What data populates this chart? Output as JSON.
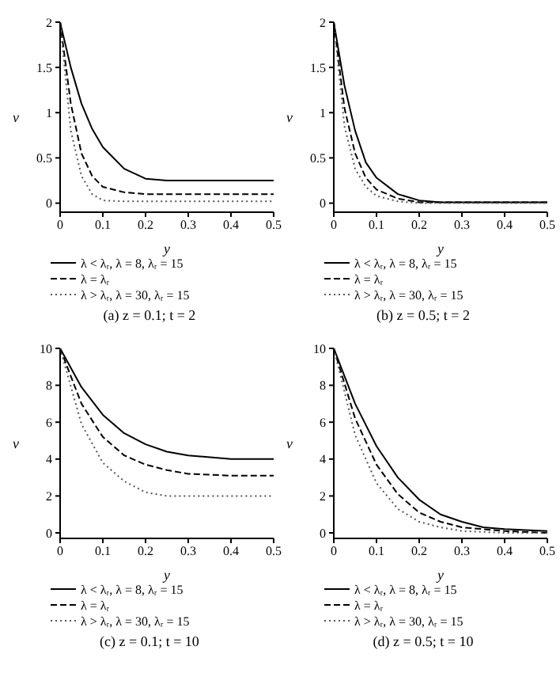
{
  "chart_data": [
    {
      "type": "line",
      "title": "(a) z = 0.1; t = 2",
      "xlabel": "y",
      "ylabel": "v",
      "xlim": [
        0,
        0.5
      ],
      "xticks": [
        0,
        0.1,
        0.2,
        0.3,
        0.4,
        0.5
      ],
      "ylim": [
        -0.1,
        2
      ],
      "yticks": [
        0,
        0.5,
        1,
        1.5,
        2
      ],
      "grid": false,
      "legend": "bottom",
      "marker": "none",
      "series": [
        {
          "name": "λ < λᵣ, λ = 8, λᵣ = 15",
          "color": "#000000",
          "line_style": "solid",
          "x": [
            0,
            0.025,
            0.05,
            0.075,
            0.1,
            0.15,
            0.2,
            0.25,
            0.3,
            0.4,
            0.5
          ],
          "values": [
            2,
            1.5,
            1.1,
            0.82,
            0.62,
            0.38,
            0.27,
            0.25,
            0.25,
            0.25,
            0.25
          ]
        },
        {
          "name": "λ = λᵣ",
          "color": "#000000",
          "line_style": "dashed",
          "x": [
            0,
            0.025,
            0.05,
            0.075,
            0.1,
            0.15,
            0.2,
            0.3,
            0.4,
            0.5
          ],
          "values": [
            2,
            1.1,
            0.55,
            0.3,
            0.18,
            0.12,
            0.1,
            0.1,
            0.1,
            0.1
          ]
        },
        {
          "name": "λ > λᵣ, λ = 30, λᵣ = 15",
          "color": "#555555",
          "line_style": "dotted",
          "x": [
            0,
            0.025,
            0.05,
            0.075,
            0.1,
            0.15,
            0.3,
            0.5
          ],
          "values": [
            2,
            0.8,
            0.3,
            0.1,
            0.03,
            0.02,
            0.02,
            0.02
          ]
        }
      ]
    },
    {
      "type": "line",
      "title": "(b) z = 0.5; t = 2",
      "xlabel": "y",
      "ylabel": "v",
      "xlim": [
        0,
        0.5
      ],
      "xticks": [
        0,
        0.1,
        0.2,
        0.3,
        0.4,
        0.5
      ],
      "ylim": [
        -0.1,
        2
      ],
      "yticks": [
        0,
        0.5,
        1,
        1.5,
        2
      ],
      "grid": false,
      "legend": "bottom",
      "marker": "none",
      "series": [
        {
          "name": "λ < λᵣ, λ = 8, λᵣ = 15",
          "color": "#000000",
          "line_style": "solid",
          "x": [
            0,
            0.025,
            0.05,
            0.075,
            0.1,
            0.15,
            0.2,
            0.25,
            0.5
          ],
          "values": [
            2,
            1.3,
            0.8,
            0.45,
            0.28,
            0.1,
            0.03,
            0.01,
            0.01
          ]
        },
        {
          "name": "λ = λᵣ",
          "color": "#000000",
          "line_style": "dashed",
          "x": [
            0,
            0.025,
            0.05,
            0.075,
            0.1,
            0.15,
            0.2,
            0.5
          ],
          "values": [
            2,
            1.05,
            0.55,
            0.28,
            0.15,
            0.05,
            0.01,
            0.01
          ]
        },
        {
          "name": "λ > λᵣ, λ = 30, λᵣ = 15",
          "color": "#555555",
          "line_style": "dotted",
          "x": [
            0,
            0.025,
            0.05,
            0.075,
            0.1,
            0.15,
            0.2,
            0.5
          ],
          "values": [
            2,
            0.85,
            0.38,
            0.18,
            0.08,
            0.02,
            0,
            0
          ]
        }
      ]
    },
    {
      "type": "line",
      "title": "(c) z = 0.1; t = 10",
      "xlabel": "y",
      "ylabel": "v",
      "xlim": [
        0,
        0.5
      ],
      "xticks": [
        0,
        0.1,
        0.2,
        0.3,
        0.4,
        0.5
      ],
      "ylim": [
        -0.3,
        10
      ],
      "yticks": [
        0,
        2,
        4,
        6,
        8,
        10
      ],
      "grid": false,
      "legend": "bottom",
      "marker": "none",
      "series": [
        {
          "name": "λ < λᵣ, λ = 8, λᵣ = 15",
          "color": "#000000",
          "line_style": "solid",
          "x": [
            0,
            0.05,
            0.1,
            0.15,
            0.2,
            0.25,
            0.3,
            0.4,
            0.5
          ],
          "values": [
            10,
            7.9,
            6.4,
            5.4,
            4.8,
            4.4,
            4.2,
            4,
            4
          ]
        },
        {
          "name": "λ = λᵣ",
          "color": "#000000",
          "line_style": "dashed",
          "x": [
            0,
            0.05,
            0.1,
            0.15,
            0.2,
            0.25,
            0.3,
            0.4,
            0.5
          ],
          "values": [
            10,
            7,
            5.2,
            4.2,
            3.7,
            3.4,
            3.2,
            3.1,
            3.1
          ]
        },
        {
          "name": "λ > λᵣ, λ = 30, λᵣ = 15",
          "color": "#555555",
          "line_style": "dotted",
          "x": [
            0,
            0.05,
            0.1,
            0.15,
            0.2,
            0.25,
            0.3,
            0.5
          ],
          "values": [
            10,
            5.9,
            3.8,
            2.8,
            2.2,
            2,
            2,
            2
          ]
        }
      ]
    },
    {
      "type": "line",
      "title": "(d) z = 0.5; t = 10",
      "xlabel": "y",
      "ylabel": "v",
      "xlim": [
        0,
        0.5
      ],
      "xticks": [
        0,
        0.1,
        0.2,
        0.3,
        0.4,
        0.5
      ],
      "ylim": [
        -0.3,
        10
      ],
      "yticks": [
        0,
        2,
        4,
        6,
        8,
        10
      ],
      "grid": false,
      "legend": "bottom",
      "marker": "none",
      "series": [
        {
          "name": "λ < λᵣ, λ = 8, λᵣ = 15",
          "color": "#000000",
          "line_style": "solid",
          "x": [
            0,
            0.05,
            0.1,
            0.15,
            0.2,
            0.25,
            0.3,
            0.35,
            0.4,
            0.5
          ],
          "values": [
            10,
            7,
            4.7,
            3,
            1.8,
            1,
            0.6,
            0.3,
            0.2,
            0.1
          ]
        },
        {
          "name": "λ = λᵣ",
          "color": "#000000",
          "line_style": "dashed",
          "x": [
            0,
            0.05,
            0.1,
            0.15,
            0.2,
            0.25,
            0.3,
            0.4,
            0.5
          ],
          "values": [
            10,
            6.2,
            3.7,
            2.1,
            1.1,
            0.6,
            0.3,
            0.1,
            0
          ]
        },
        {
          "name": "λ > λᵣ, λ = 30, λᵣ = 15",
          "color": "#555555",
          "line_style": "dotted",
          "x": [
            0,
            0.05,
            0.1,
            0.15,
            0.2,
            0.25,
            0.3,
            0.4,
            0.5
          ],
          "values": [
            10,
            5.3,
            2.7,
            1.3,
            0.6,
            0.3,
            0.1,
            0,
            0
          ]
        }
      ]
    }
  ]
}
